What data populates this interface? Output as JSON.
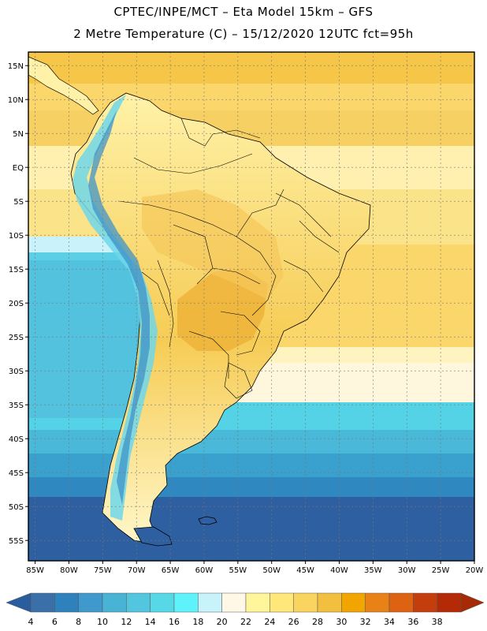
{
  "header": {
    "line1": "CPTEC/INPE/MCT –  Eta Model 15km – GFS",
    "line2": "2 Metre Temperature (C) – 15/12/2020 12UTC fct=95h"
  },
  "map": {
    "region": "South America",
    "lon_range": [
      -86,
      -20
    ],
    "lat_range": [
      -58,
      17
    ],
    "lat_ticks": [
      "15N",
      "10N",
      "5N",
      "EQ",
      "5S",
      "10S",
      "15S",
      "20S",
      "25S",
      "30S",
      "35S",
      "40S",
      "45S",
      "50S",
      "55S"
    ],
    "lat_values": [
      15,
      10,
      5,
      0,
      -5,
      -10,
      -15,
      -20,
      -25,
      -30,
      -35,
      -40,
      -45,
      -50,
      -55
    ],
    "lon_ticks": [
      "85W",
      "80W",
      "75W",
      "70W",
      "65W",
      "60W",
      "55W",
      "50W",
      "45W",
      "40W",
      "35W",
      "30W",
      "25W",
      "20W"
    ],
    "lon_values": [
      -85,
      -80,
      -75,
      -70,
      -65,
      -60,
      -55,
      -50,
      -45,
      -40,
      -35,
      -30,
      -25,
      -20
    ]
  },
  "colorbar": {
    "labels": [
      "4",
      "6",
      "8",
      "10",
      "12",
      "14",
      "16",
      "18",
      "20",
      "22",
      "24",
      "26",
      "28",
      "30",
      "32",
      "34",
      "36",
      "38"
    ],
    "colors": [
      "#3a6fa8",
      "#2e81bd",
      "#3f99cc",
      "#49b3d6",
      "#52c6de",
      "#57d8e6",
      "#5ef2fa",
      "#c8f3fb",
      "#fff8e6",
      "#fff59a",
      "#ffe77a",
      "#f9d560",
      "#f2c03e",
      "#f2a500",
      "#e88216",
      "#dd6313",
      "#c43d0c",
      "#b52a06"
    ],
    "low_arrow_color": "#2a5d9e",
    "high_arrow_color": "#a72a06"
  }
}
